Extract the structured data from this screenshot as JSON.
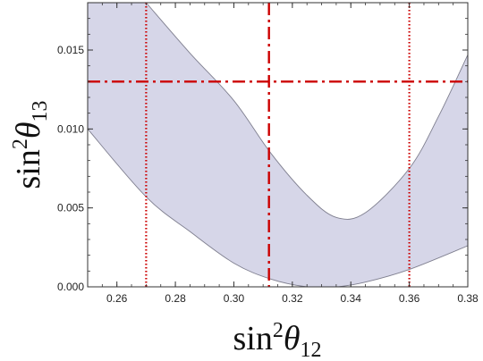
{
  "chart_data": {
    "type": "area",
    "xlabel": {
      "base": "sin",
      "sup": "2",
      "theta": "θ",
      "sub": "12"
    },
    "ylabel": {
      "base": "sin",
      "sup": "2",
      "theta": "θ",
      "sub": "13"
    },
    "xlim": [
      0.25,
      0.38
    ],
    "ylim": [
      0.0,
      0.018
    ],
    "xticks": [
      0.26,
      0.28,
      0.3,
      0.32,
      0.34,
      0.36,
      0.38
    ],
    "xtick_labels": [
      "0.26",
      "0.28",
      "0.30",
      "0.32",
      "0.34",
      "0.36",
      "0.38"
    ],
    "yticks": [
      0.0,
      0.005,
      0.01,
      0.015
    ],
    "ytick_labels": [
      "0.000",
      "0.005",
      "0.010",
      "0.015"
    ],
    "band": {
      "upper": [
        {
          "x": 0.27,
          "y": 0.018
        },
        {
          "x": 0.285,
          "y": 0.0148
        },
        {
          "x": 0.3,
          "y": 0.0118
        },
        {
          "x": 0.3125,
          "y": 0.0085
        },
        {
          "x": 0.325,
          "y": 0.0058
        },
        {
          "x": 0.335,
          "y": 0.0044
        },
        {
          "x": 0.345,
          "y": 0.0047
        },
        {
          "x": 0.36,
          "y": 0.0075
        },
        {
          "x": 0.37,
          "y": 0.0108
        },
        {
          "x": 0.38,
          "y": 0.0147
        }
      ],
      "lower": [
        {
          "x": 0.25,
          "y": 0.01
        },
        {
          "x": 0.27,
          "y": 0.0057
        },
        {
          "x": 0.285,
          "y": 0.0035
        },
        {
          "x": 0.3,
          "y": 0.0015
        },
        {
          "x": 0.3125,
          "y": 0.0005
        },
        {
          "x": 0.325,
          "y": 0.0
        },
        {
          "x": 0.335,
          "y": 0.0
        },
        {
          "x": 0.345,
          "y": 0.0003
        },
        {
          "x": 0.36,
          "y": 0.0011
        },
        {
          "x": 0.38,
          "y": 0.0026
        }
      ],
      "fill_color": "#d6d6e8",
      "edge_color": "#7f7f8f"
    },
    "reference_lines": [
      {
        "orientation": "vertical",
        "value": 0.27,
        "style": "dotted",
        "color": "#cc0000"
      },
      {
        "orientation": "vertical",
        "value": 0.312,
        "style": "dashdot",
        "color": "#cc0000"
      },
      {
        "orientation": "vertical",
        "value": 0.36,
        "style": "dotted",
        "color": "#cc0000"
      },
      {
        "orientation": "horizontal",
        "value": 0.013,
        "style": "dashdot",
        "color": "#cc0000"
      }
    ],
    "grid": false
  }
}
